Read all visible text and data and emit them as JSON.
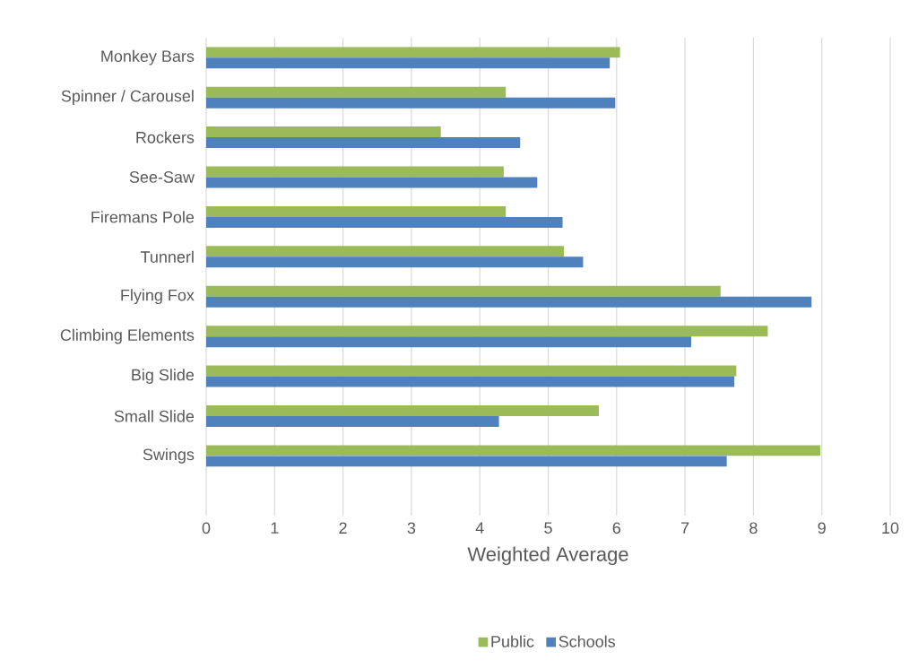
{
  "chart_data": {
    "type": "bar",
    "orientation": "horizontal",
    "xlabel": "Weighted Average",
    "categories": [
      "Monkey Bars",
      "Spinner / Carousel",
      "Rockers",
      "See-Saw",
      "Firemans Pole",
      "Tunnerl",
      "Flying Fox",
      "Climbing Elements",
      "Big Slide",
      "Small Slide",
      "Swings"
    ],
    "series": [
      {
        "name": "Public",
        "color": "#9bbb59",
        "values": [
          6.05,
          4.38,
          3.43,
          4.35,
          4.38,
          5.23,
          7.52,
          8.21,
          7.75,
          5.74,
          8.98
        ]
      },
      {
        "name": "Schools",
        "color": "#4f81bd",
        "values": [
          5.9,
          5.98,
          4.59,
          4.84,
          5.21,
          5.51,
          8.85,
          7.09,
          7.72,
          4.28,
          7.61
        ]
      }
    ],
    "xlim": [
      0,
      10
    ],
    "xticks": [
      0,
      1,
      2,
      3,
      4,
      5,
      6,
      7,
      8,
      9,
      10
    ],
    "grid": "x",
    "legend": "bottom"
  }
}
